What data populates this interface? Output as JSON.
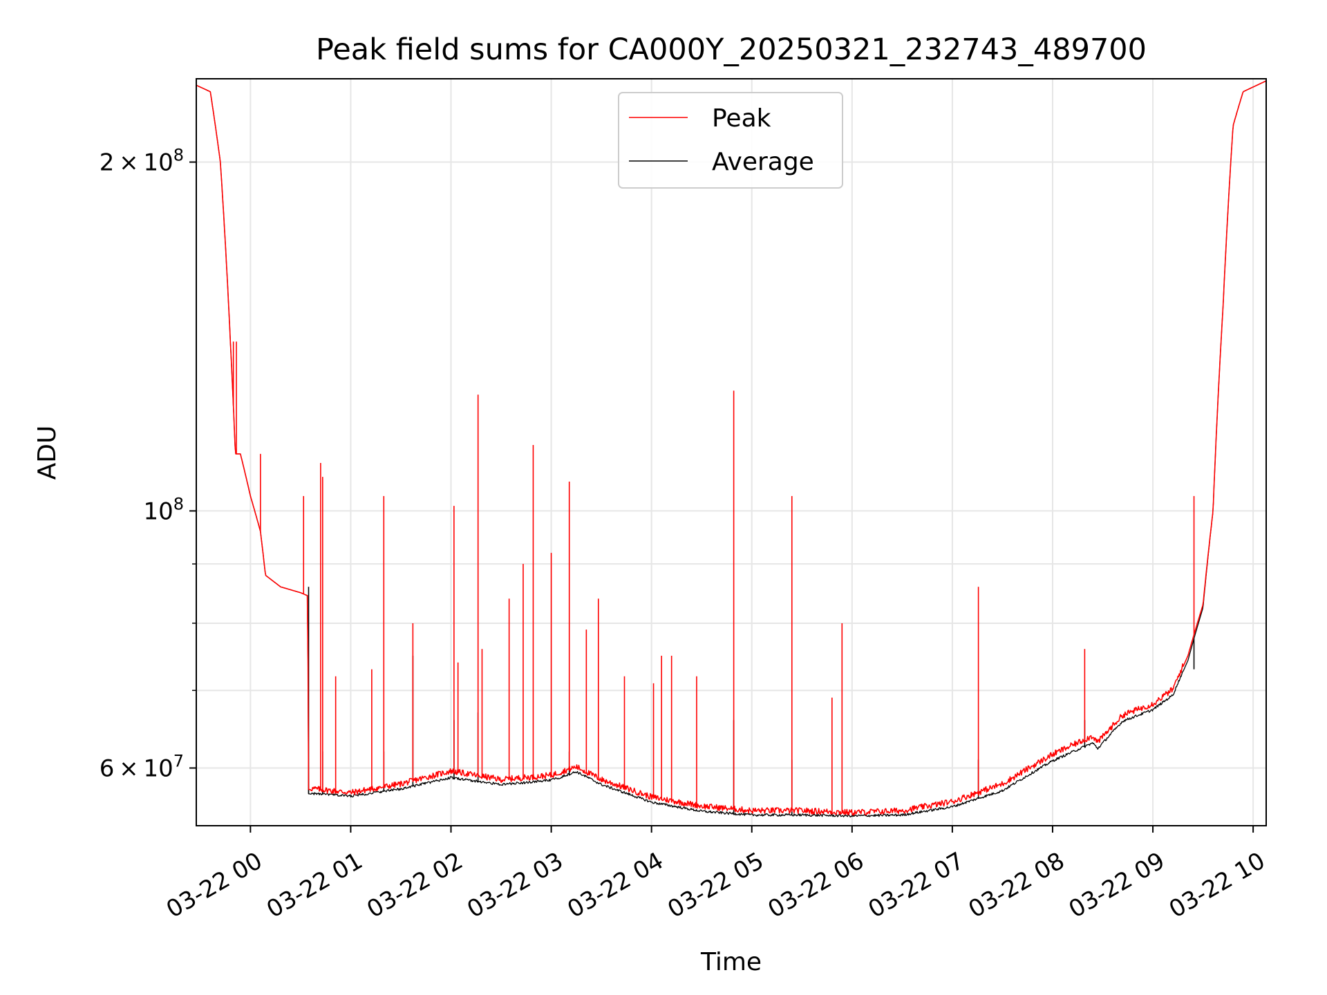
{
  "chart_data": {
    "type": "line",
    "title": "Peak field sums for CA000Y_20250321_232743_489700",
    "xlabel": "Time",
    "ylabel": "ADU",
    "x_axis": "time",
    "x_range_hours": [
      23.46,
      34.13
    ],
    "y_scale": "log",
    "ylim": [
      53500000,
      236000000
    ],
    "grid": true,
    "legend_position": "upper-center",
    "x_ticks": [
      {
        "label": "03-22 00",
        "value": 24
      },
      {
        "label": "03-22 01",
        "value": 25
      },
      {
        "label": "03-22 02",
        "value": 26
      },
      {
        "label": "03-22 03",
        "value": 27
      },
      {
        "label": "03-22 04",
        "value": 28
      },
      {
        "label": "03-22 05",
        "value": 29
      },
      {
        "label": "03-22 06",
        "value": 30
      },
      {
        "label": "03-22 07",
        "value": 31
      },
      {
        "label": "03-22 08",
        "value": 32
      },
      {
        "label": "03-22 09",
        "value": 33
      },
      {
        "label": "03-22 10",
        "value": 34
      }
    ],
    "y_major_ticks": [
      {
        "value": 60000000,
        "base": "6",
        "exp": "7"
      },
      {
        "value": 100000000,
        "base": "",
        "exp": "8"
      },
      {
        "value": 200000000,
        "base": "2",
        "exp": "8"
      }
    ],
    "y_minor_ticks": [
      70000000,
      80000000,
      90000000
    ],
    "series": [
      {
        "name": "Peak",
        "color": "#ff0000",
        "baseline": [
          [
            23.46,
            233000000
          ],
          [
            23.6,
            230000000
          ],
          [
            23.7,
            200000000
          ],
          [
            23.8,
            140000000
          ],
          [
            23.85,
            112000000
          ],
          [
            23.9,
            112000000
          ],
          [
            24.0,
            103000000
          ],
          [
            24.1,
            96000000
          ],
          [
            24.15,
            88000000
          ],
          [
            24.3,
            86000000
          ],
          [
            24.5,
            85000000
          ],
          [
            24.57,
            84500000
          ],
          [
            24.58,
            57500000
          ],
          [
            25.0,
            57000000
          ],
          [
            25.5,
            58000000
          ],
          [
            26.0,
            59500000
          ],
          [
            26.5,
            58500000
          ],
          [
            27.0,
            59000000
          ],
          [
            27.25,
            60000000
          ],
          [
            27.5,
            58500000
          ],
          [
            28.0,
            56500000
          ],
          [
            28.5,
            55500000
          ],
          [
            29.0,
            55000000
          ],
          [
            29.5,
            55000000
          ],
          [
            30.0,
            54800000
          ],
          [
            30.5,
            55000000
          ],
          [
            31.0,
            56000000
          ],
          [
            31.5,
            58000000
          ],
          [
            32.0,
            61500000
          ],
          [
            32.4,
            63800000
          ],
          [
            32.45,
            63000000
          ],
          [
            32.7,
            66500000
          ],
          [
            33.0,
            68000000
          ],
          [
            33.2,
            70000000
          ],
          [
            33.35,
            75000000
          ],
          [
            33.5,
            83000000
          ],
          [
            33.6,
            100000000
          ],
          [
            33.7,
            150000000
          ],
          [
            33.8,
            215000000
          ],
          [
            33.9,
            230000000
          ],
          [
            34.13,
            235000000
          ]
        ],
        "spikes": [
          [
            23.83,
            140000000
          ],
          [
            23.86,
            140000000
          ],
          [
            24.1,
            112000000
          ],
          [
            24.53,
            103000000
          ],
          [
            24.7,
            110000000
          ],
          [
            24.72,
            107000000
          ],
          [
            24.85,
            72000000
          ],
          [
            25.21,
            73000000
          ],
          [
            25.33,
            103000000
          ],
          [
            25.62,
            80000000
          ],
          [
            26.03,
            101000000
          ],
          [
            26.07,
            74000000
          ],
          [
            26.27,
            126000000
          ],
          [
            26.31,
            76000000
          ],
          [
            26.58,
            84000000
          ],
          [
            26.72,
            90000000
          ],
          [
            26.82,
            114000000
          ],
          [
            27.0,
            92000000
          ],
          [
            27.18,
            106000000
          ],
          [
            27.35,
            79000000
          ],
          [
            27.47,
            84000000
          ],
          [
            27.73,
            72000000
          ],
          [
            28.02,
            71000000
          ],
          [
            28.1,
            75000000
          ],
          [
            28.2,
            75000000
          ],
          [
            28.45,
            72000000
          ],
          [
            28.82,
            127000000
          ],
          [
            29.4,
            103000000
          ],
          [
            29.8,
            69000000
          ],
          [
            29.9,
            80000000
          ],
          [
            31.26,
            86000000
          ],
          [
            32.32,
            76000000
          ],
          [
            33.41,
            103000000
          ]
        ]
      },
      {
        "name": "Average",
        "color": "#000000",
        "baseline": [
          [
            23.46,
            233000000
          ],
          [
            23.6,
            230000000
          ],
          [
            23.7,
            200000000
          ],
          [
            23.8,
            140000000
          ],
          [
            23.85,
            112000000
          ],
          [
            23.9,
            112000000
          ],
          [
            24.0,
            103000000
          ],
          [
            24.1,
            96000000
          ],
          [
            24.15,
            88000000
          ],
          [
            24.3,
            86000000
          ],
          [
            24.5,
            85000000
          ],
          [
            24.57,
            84500000
          ],
          [
            24.58,
            57000000
          ],
          [
            25.0,
            56700000
          ],
          [
            25.5,
            57500000
          ],
          [
            26.0,
            58800000
          ],
          [
            26.5,
            58000000
          ],
          [
            27.0,
            58500000
          ],
          [
            27.25,
            59500000
          ],
          [
            27.5,
            58000000
          ],
          [
            28.0,
            56000000
          ],
          [
            28.5,
            55000000
          ],
          [
            29.0,
            54600000
          ],
          [
            29.5,
            54600000
          ],
          [
            30.0,
            54500000
          ],
          [
            30.5,
            54600000
          ],
          [
            31.0,
            55500000
          ],
          [
            31.5,
            57300000
          ],
          [
            32.0,
            60800000
          ],
          [
            32.4,
            63000000
          ],
          [
            32.45,
            62300000
          ],
          [
            32.7,
            65800000
          ],
          [
            33.0,
            67300000
          ],
          [
            33.2,
            69300000
          ],
          [
            33.35,
            74300000
          ],
          [
            33.5,
            82500000
          ],
          [
            33.6,
            100000000
          ],
          [
            33.7,
            150000000
          ],
          [
            33.8,
            215000000
          ],
          [
            33.9,
            230000000
          ],
          [
            34.13,
            235000000
          ]
        ],
        "spikes": [
          [
            24.58,
            86000000
          ],
          [
            24.72,
            62000000
          ],
          [
            25.33,
            62000000
          ],
          [
            25.62,
            75000000
          ],
          [
            26.03,
            66000000
          ],
          [
            26.27,
            67000000
          ],
          [
            27.18,
            62000000
          ],
          [
            28.82,
            66000000
          ],
          [
            29.4,
            61000000
          ],
          [
            31.26,
            61000000
          ],
          [
            32.32,
            66000000
          ],
          [
            33.41,
            73000000
          ]
        ]
      }
    ]
  }
}
